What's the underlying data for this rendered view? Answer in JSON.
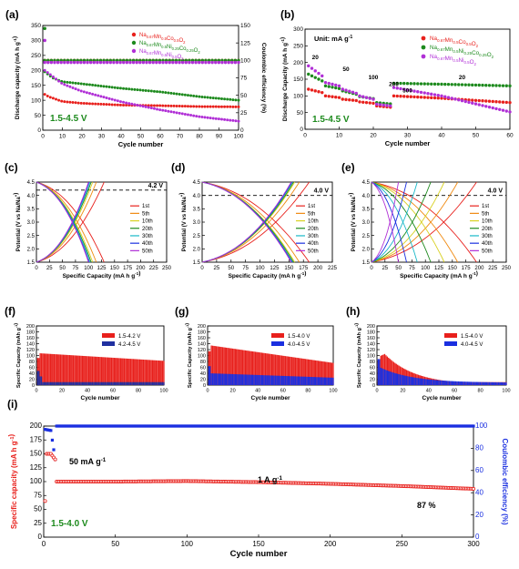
{
  "colors": {
    "red": "#e8201c",
    "green": "#1d8a1d",
    "purple": "#b02fd6",
    "yellow": "#d8d020",
    "cyan": "#18b8c8",
    "blue": "#1a2fe0",
    "orange": "#f08a10",
    "darkblue": "#2030a0",
    "black": "#111111"
  },
  "chart_data": [
    {
      "panel": "(a)",
      "type": "scatter",
      "xlabel": "Cycle number",
      "ylabel": "Discharge capacity (mA h g-1)",
      "ylabel2": "Coulombic efficiency (%)",
      "xlim": [
        0,
        100
      ],
      "ylim": [
        0,
        350
      ],
      "ylim2": [
        0,
        150
      ],
      "xticks": [
        "0",
        "10",
        "20",
        "30",
        "40",
        "50",
        "60",
        "70",
        "80",
        "90",
        "100"
      ],
      "yticks": [
        "0",
        "50",
        "100",
        "150",
        "200",
        "250",
        "300",
        "350"
      ],
      "yticks2": [
        "0",
        "25",
        "50",
        "75",
        "100",
        "125",
        "150"
      ],
      "annotation": "1.5-4.5 V",
      "legend": [
        "Na0.67Mn0.5Co0.5O2",
        "Na0.67Mn0.5Ni0.25Co0.25O2",
        "Na0.67Mn0.5Ni0.5O2"
      ],
      "series": [
        {
          "name": "Na0.67Mn0.5Co0.5O2",
          "color": "red",
          "capacity": [
            [
              1,
              120
            ],
            [
              3,
              112
            ],
            [
              10,
              96
            ],
            [
              20,
              90
            ],
            [
              40,
              84
            ],
            [
              60,
              82
            ],
            [
              80,
              79
            ],
            [
              100,
              78
            ]
          ],
          "efficiency": [
            [
              1,
              100
            ],
            [
              100,
              100
            ]
          ]
        },
        {
          "name": "Na0.67Mn0.5Ni0.25Co0.25O2",
          "color": "green",
          "capacity": [
            [
              1,
              195
            ],
            [
              5,
              175
            ],
            [
              10,
              162
            ],
            [
              20,
              155
            ],
            [
              40,
              140
            ],
            [
              60,
              128
            ],
            [
              80,
              112
            ],
            [
              100,
              100
            ]
          ],
          "efficiency": [
            [
              1,
              100
            ],
            [
              100,
              100
            ]
          ]
        },
        {
          "name": "Na0.67Mn0.5Ni0.5O2",
          "color": "purple",
          "capacity": [
            [
              1,
              200
            ],
            [
              5,
              180
            ],
            [
              10,
              155
            ],
            [
              20,
              130
            ],
            [
              40,
              95
            ],
            [
              60,
              68
            ],
            [
              80,
              45
            ],
            [
              100,
              30
            ]
          ],
          "efficiency": [
            [
              1,
              97
            ],
            [
              100,
              97
            ]
          ]
        }
      ]
    },
    {
      "panel": "(b)",
      "type": "scatter",
      "xlabel": "Cycle number",
      "ylabel": "Discharge Capacity (mA h g-1)",
      "xlim": [
        0,
        60
      ],
      "ylim": [
        0,
        300
      ],
      "xticks": [
        "0",
        "10",
        "20",
        "30",
        "40",
        "50",
        "60"
      ],
      "yticks": [
        "0",
        "50",
        "100",
        "150",
        "200",
        "250",
        "300"
      ],
      "unit_label": "Unit: mA g-1",
      "annotation": "1.5-4.5 V",
      "rate_labels": [
        "20",
        "50",
        "100",
        "200",
        "500",
        "20"
      ],
      "legend": [
        "Na0.67Mn0.5Co0.5O2",
        "Na0.67Mn0.5Ni0.25Co0.25O2",
        "Na0.67Mn0.5Ni0.5O2"
      ],
      "series": [
        {
          "name": "Na0.67Mn0.5Co0.5O2",
          "color": "red",
          "values": [
            [
              1,
              120
            ],
            [
              5,
              110
            ],
            [
              6,
              100
            ],
            [
              10,
              95
            ],
            [
              11,
              90
            ],
            [
              15,
              86
            ],
            [
              16,
              82
            ],
            [
              20,
              78
            ],
            [
              21,
              70
            ],
            [
              25,
              66
            ],
            [
              26,
              100
            ],
            [
              40,
              93
            ],
            [
              60,
              80
            ]
          ]
        },
        {
          "name": "Na0.67Mn0.5Ni0.25Co0.25O2",
          "color": "green",
          "values": [
            [
              1,
              165
            ],
            [
              5,
              145
            ],
            [
              6,
              130
            ],
            [
              10,
              122
            ],
            [
              11,
              115
            ],
            [
              15,
              105
            ],
            [
              16,
              98
            ],
            [
              20,
              92
            ],
            [
              21,
              80
            ],
            [
              25,
              76
            ],
            [
              26,
              138
            ],
            [
              40,
              135
            ],
            [
              60,
              130
            ]
          ]
        },
        {
          "name": "Na0.67Mn0.5Ni0.5O2",
          "color": "purple",
          "values": [
            [
              1,
              190
            ],
            [
              5,
              160
            ],
            [
              6,
              140
            ],
            [
              10,
              130
            ],
            [
              11,
              120
            ],
            [
              15,
              108
            ],
            [
              16,
              100
            ],
            [
              20,
              90
            ],
            [
              21,
              75
            ],
            [
              25,
              70
            ],
            [
              26,
              125
            ],
            [
              40,
              100
            ],
            [
              60,
              52
            ]
          ]
        }
      ]
    },
    {
      "panel": "(c)",
      "type": "line",
      "xlabel": "Specific Capacity (mA h g-1)",
      "ylabel": "Potential (V vs Na/Na+)",
      "xlim": [
        0,
        250
      ],
      "ylim": [
        1.5,
        4.5
      ],
      "cutoff_label": "4.2 V",
      "cutoff": 4.2,
      "xticks": [
        "0",
        "25",
        "50",
        "75",
        "100",
        "125",
        "150",
        "175",
        "200",
        "225",
        "250"
      ],
      "yticks": [
        "1.5",
        "2.0",
        "2.5",
        "3.0",
        "3.5",
        "4.0",
        "4.5"
      ],
      "legend": [
        "1st",
        "5th",
        "10th",
        "20th",
        "30th",
        "40th",
        "50th"
      ],
      "capacities": [
        130,
        115,
        108,
        105,
        103,
        101,
        100
      ]
    },
    {
      "panel": "(d)",
      "type": "line",
      "xlabel": "Specific Capacity (mA h g-1)",
      "ylabel": "Potential (V vs Na/Na+)",
      "xlim": [
        0,
        225
      ],
      "ylim": [
        1.5,
        4.5
      ],
      "cutoff_label": "4.0 V",
      "cutoff": 4.0,
      "xticks": [
        "0",
        "25",
        "50",
        "75",
        "100",
        "125",
        "150",
        "175",
        "200",
        "225"
      ],
      "yticks": [
        "1.5",
        "2.0",
        "2.5",
        "3.0",
        "3.5",
        "4.0",
        "4.5"
      ],
      "legend": [
        "1st",
        "5th",
        "10th",
        "20th",
        "30th",
        "40th",
        "50th"
      ],
      "capacities": [
        185,
        168,
        160,
        158,
        156,
        155,
        154
      ]
    },
    {
      "panel": "(e)",
      "type": "line",
      "xlabel": "Specific Capacity (mA h g-1)",
      "ylabel": "Potential (V vs Na/Na+)",
      "xlim": [
        0,
        250
      ],
      "ylim": [
        1.5,
        4.5
      ],
      "cutoff_label": "4.0 V",
      "cutoff": 4.0,
      "xticks": [
        "0",
        "25",
        "50",
        "75",
        "100",
        "125",
        "150",
        "175",
        "200",
        "225",
        "250"
      ],
      "yticks": [
        "1.5",
        "2.0",
        "2.5",
        "3.0",
        "3.5",
        "4.0",
        "4.5"
      ],
      "legend": [
        "1st",
        "5th",
        "10th",
        "20th",
        "30th",
        "40th",
        "50th"
      ],
      "capacities": [
        195,
        160,
        135,
        110,
        85,
        65,
        50
      ]
    },
    {
      "panel": "(f)",
      "type": "area",
      "xlabel": "Cycle number",
      "ylabel": "Specific Capacity (mAh g-1)",
      "xlim": [
        0,
        100
      ],
      "ylim": [
        0,
        200
      ],
      "xticks": [
        "0",
        "20",
        "40",
        "60",
        "80",
        "100"
      ],
      "yticks": [
        "0",
        "20",
        "40",
        "60",
        "80",
        "100",
        "120",
        "140",
        "160",
        "180",
        "200"
      ],
      "series": [
        {
          "name": "1.5-4.2 V",
          "color": "red",
          "start": 108,
          "end": 82
        },
        {
          "name": "4.2-4.5 V",
          "color": "darkblue",
          "start": 30,
          "end": 5
        }
      ]
    },
    {
      "panel": "(g)",
      "type": "area",
      "xlabel": "Cycle number",
      "ylabel": "Specific Capacity (mAh g-1)",
      "xlim": [
        0,
        100
      ],
      "ylim": [
        0,
        200
      ],
      "xticks": [
        "0",
        "20",
        "40",
        "60",
        "80",
        "100"
      ],
      "yticks": [
        "0",
        "20",
        "40",
        "60",
        "80",
        "100",
        "120",
        "140",
        "160",
        "180",
        "200"
      ],
      "series": [
        {
          "name": "1.5-4.0 V",
          "color": "red",
          "start": 135,
          "end": 75
        },
        {
          "name": "4.0-4.5 V",
          "color": "blue",
          "start": 40,
          "end": 25
        }
      ]
    },
    {
      "panel": "(h)",
      "type": "area",
      "xlabel": "Cycle number",
      "ylabel": "Specific Capacity (mAh g-1)",
      "xlim": [
        0,
        100
      ],
      "ylim": [
        0,
        200
      ],
      "xticks": [
        "0",
        "20",
        "40",
        "60",
        "80",
        "100"
      ],
      "yticks": [
        "0",
        "20",
        "40",
        "60",
        "80",
        "100",
        "120",
        "140",
        "160",
        "180",
        "200"
      ],
      "series": [
        {
          "name": "1.5-4.0 V",
          "color": "red",
          "start": 130,
          "end": 10
        },
        {
          "name": "4.0-4.5 V",
          "color": "blue",
          "start": 55,
          "end": 8
        }
      ]
    },
    {
      "panel": "(i)",
      "type": "scatter",
      "xlabel": "Cycle number",
      "ylabel": "Specific capacity (mA h g-1)",
      "ylabel2": "Coulombic efficiency (%)",
      "xlim": [
        0,
        300
      ],
      "ylim": [
        0,
        200
      ],
      "ylim2": [
        0,
        100
      ],
      "xticks": [
        "0",
        "50",
        "100",
        "150",
        "200",
        "250",
        "300"
      ],
      "yticks": [
        "0",
        "25",
        "50",
        "75",
        "100",
        "125",
        "150",
        "175",
        "200"
      ],
      "yticks2": [
        "0",
        "20",
        "40",
        "60",
        "80",
        "100"
      ],
      "annotations": [
        "50 mA g-1",
        "1 A g-1",
        "87 %",
        "1.5-4.0 V"
      ],
      "series": [
        {
          "name": "capacity",
          "color": "red",
          "values": [
            [
              1,
              65
            ],
            [
              2,
              150
            ],
            [
              5,
              150
            ],
            [
              8,
              140
            ],
            [
              9,
              100
            ],
            [
              50,
              100
            ],
            [
              100,
              101
            ],
            [
              150,
              99
            ],
            [
              200,
              96
            ],
            [
              250,
              92
            ],
            [
              300,
              87
            ]
          ]
        },
        {
          "name": "efficiency",
          "color": "blue",
          "values": [
            [
              1,
              97
            ],
            [
              5,
              96
            ],
            [
              8,
              70
            ],
            [
              9,
              100
            ],
            [
              300,
              100
            ]
          ]
        }
      ]
    }
  ],
  "text": {
    "a_label": "(a)",
    "b_label": "(b)",
    "c_label": "(c)",
    "d_label": "(d)",
    "e_label": "(e)",
    "f_label": "(f)",
    "g_label": "(g)",
    "h_label": "(h)",
    "i_label": "(i)"
  }
}
